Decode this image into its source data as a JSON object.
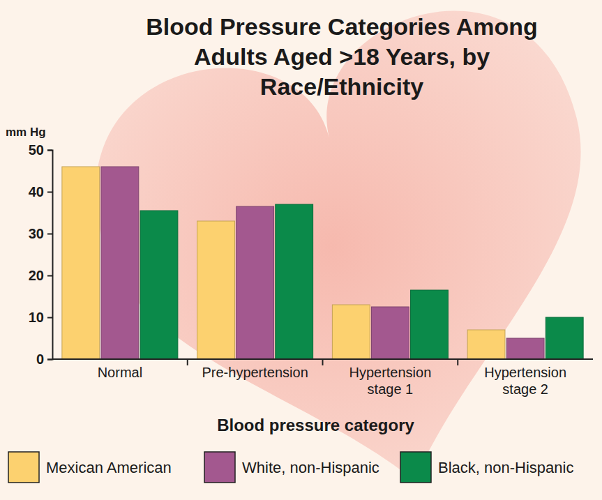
{
  "chart_data": {
    "type": "bar",
    "title": "Blood Pressure Categories Among Adults Aged >18 Years, by Race/Ethnicity",
    "y_label": "mm Hg",
    "x_label": "Blood pressure category",
    "categories": [
      "Normal",
      "Pre-hypertension",
      "Hypertension stage 1",
      "Hypertension stage 2"
    ],
    "series": [
      {
        "name": "Mexican American",
        "color": "#fcd16f",
        "values": [
          46,
          33,
          13,
          7
        ]
      },
      {
        "name": "White, non-Hispanic",
        "color": "#a3588f",
        "values": [
          46,
          36.5,
          12.5,
          5
        ]
      },
      {
        "name": "Black, non-Hispanic",
        "color": "#0b8a4a",
        "values": [
          35.5,
          37,
          16.5,
          10
        ]
      }
    ],
    "ylim": [
      0,
      50
    ],
    "yticks": [
      0,
      10,
      20,
      30,
      40,
      50
    ],
    "grid": false,
    "legend": "bottom"
  }
}
